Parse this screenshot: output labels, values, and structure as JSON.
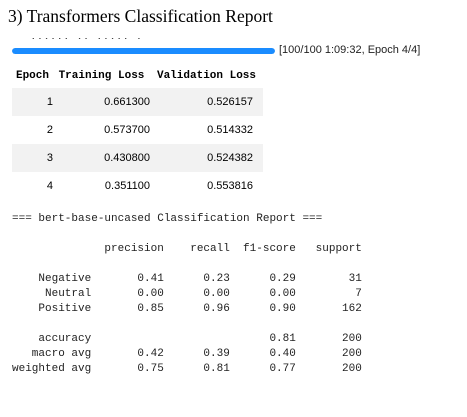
{
  "heading": "3) Transformers Classification Report",
  "cut_text": "...... .. ..... .",
  "progress": {
    "fraction": 1.0,
    "text": "[100/100 1:09:32, Epoch 4/4]"
  },
  "training_table": {
    "headers": [
      "Epoch",
      "Training Loss",
      "Validation Loss"
    ],
    "rows": [
      [
        "1",
        "0.661300",
        "0.526157"
      ],
      [
        "2",
        "0.573700",
        "0.514332"
      ],
      [
        "3",
        "0.430800",
        "0.524382"
      ],
      [
        "4",
        "0.351100",
        "0.553816"
      ]
    ]
  },
  "report": {
    "lines": [
      "=== bert-base-uncased Classification Report ===",
      "",
      "              precision    recall  f1-score   support",
      "",
      "    Negative       0.41      0.23      0.29        31",
      "     Neutral       0.00      0.00      0.00         7",
      "    Positive       0.85      0.96      0.90       162",
      "",
      "    accuracy                           0.81       200",
      "   macro avg       0.42      0.39      0.40       200",
      "weighted avg       0.75      0.81      0.77       200"
    ]
  },
  "colors": {
    "progress_fill": "#1a8cff",
    "row_stripe": "#f2f2f2"
  }
}
